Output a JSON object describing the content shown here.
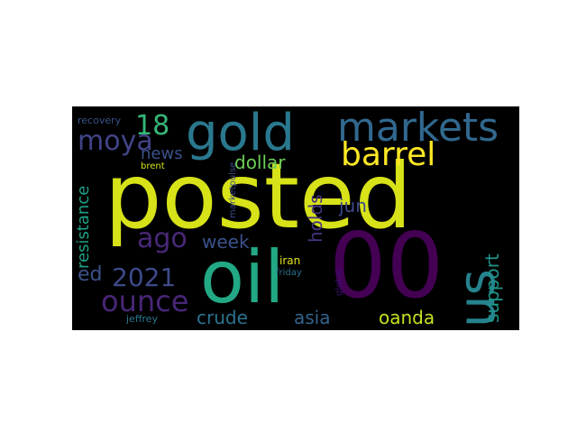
{
  "wordcloud": {
    "background": "#000000",
    "words": [
      {
        "id": "posted",
        "text": "posted",
        "color": "#d7e219"
      },
      {
        "id": "oil",
        "text": "oil",
        "color": "#22a884"
      },
      {
        "id": "00",
        "text": "00",
        "color": "#440154"
      },
      {
        "id": "us",
        "text": "us",
        "color": "#25838e"
      },
      {
        "id": "gold",
        "text": "gold",
        "color": "#2a788e"
      },
      {
        "id": "markets",
        "text": "markets",
        "color": "#31688e"
      },
      {
        "id": "barrel",
        "text": "barrel",
        "color": "#fde725"
      },
      {
        "id": "18",
        "text": "18",
        "color": "#35b779"
      },
      {
        "id": "moya",
        "text": "moya",
        "color": "#414487"
      },
      {
        "id": "ago",
        "text": "ago",
        "color": "#482878"
      },
      {
        "id": "2021",
        "text": "2021",
        "color": "#3e4a89"
      },
      {
        "id": "ounce",
        "text": "ounce",
        "color": "#482677"
      },
      {
        "id": "news",
        "text": "news",
        "color": "#3b528b"
      },
      {
        "id": "dollar",
        "text": "dollar",
        "color": "#6ece58"
      },
      {
        "id": "jun",
        "text": "jun",
        "color": "#3e4989"
      },
      {
        "id": "week",
        "text": "week",
        "color": "#3b528b"
      },
      {
        "id": "holds",
        "text": "holds",
        "color": "#46337e"
      },
      {
        "id": "resistance",
        "text": "resistance",
        "color": "#1fa187"
      },
      {
        "id": "support",
        "text": "support",
        "color": "#1f968b"
      },
      {
        "id": "ed",
        "text": "ed",
        "color": "#3b528b"
      },
      {
        "id": "crude",
        "text": "crude",
        "color": "#2c728e"
      },
      {
        "id": "asia",
        "text": "asia",
        "color": "#33638d"
      },
      {
        "id": "oanda",
        "text": "oanda",
        "color": "#c8e020"
      },
      {
        "id": "recovery",
        "text": "recovery",
        "color": "#3b528b"
      },
      {
        "id": "brent",
        "text": "brent",
        "color": "#d2e21b"
      },
      {
        "id": "marketpulse",
        "text": "marketpulse",
        "color": "#3e4a89"
      },
      {
        "id": "iran",
        "text": "iran",
        "color": "#e5e419"
      },
      {
        "id": "friday",
        "text": "friday",
        "color": "#2d708e"
      },
      {
        "id": "global",
        "text": "global",
        "color": "#3b0f70"
      },
      {
        "id": "jeffrey",
        "text": "jeffrey",
        "color": "#2a788e"
      }
    ]
  }
}
